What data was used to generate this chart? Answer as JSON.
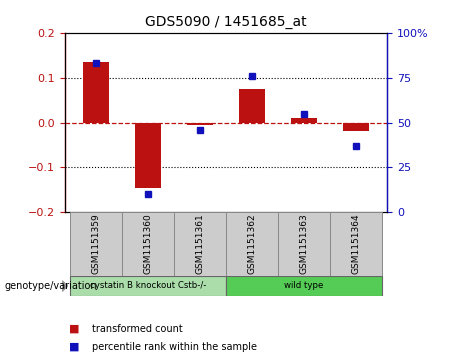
{
  "title": "GDS5090 / 1451685_at",
  "categories": [
    "GSM1151359",
    "GSM1151360",
    "GSM1151361",
    "GSM1151362",
    "GSM1151363",
    "GSM1151364"
  ],
  "red_values": [
    0.135,
    -0.145,
    -0.005,
    0.075,
    0.01,
    -0.02
  ],
  "blue_values_raw": [
    83,
    10,
    46,
    76,
    55,
    37
  ],
  "ylim_left": [
    -0.2,
    0.2
  ],
  "ylim_right": [
    0,
    100
  ],
  "yticks_left": [
    -0.2,
    -0.1,
    0.0,
    0.1,
    0.2
  ],
  "yticks_right": [
    0,
    25,
    50,
    75,
    100
  ],
  "ytick_labels_right": [
    "0",
    "25",
    "50",
    "75",
    "100%"
  ],
  "red_color": "#bb1111",
  "blue_color": "#1111bb",
  "group1_label": "cystatin B knockout Cstb-/-",
  "group2_label": "wild type",
  "group1_color": "#aaddaa",
  "group2_color": "#55cc55",
  "group1_indices": [
    0,
    1,
    2
  ],
  "group2_indices": [
    3,
    4,
    5
  ],
  "legend_red": "transformed count",
  "legend_blue": "percentile rank within the sample",
  "genotype_label": "genotype/variation",
  "bar_width": 0.5,
  "blue_marker_size": 5
}
